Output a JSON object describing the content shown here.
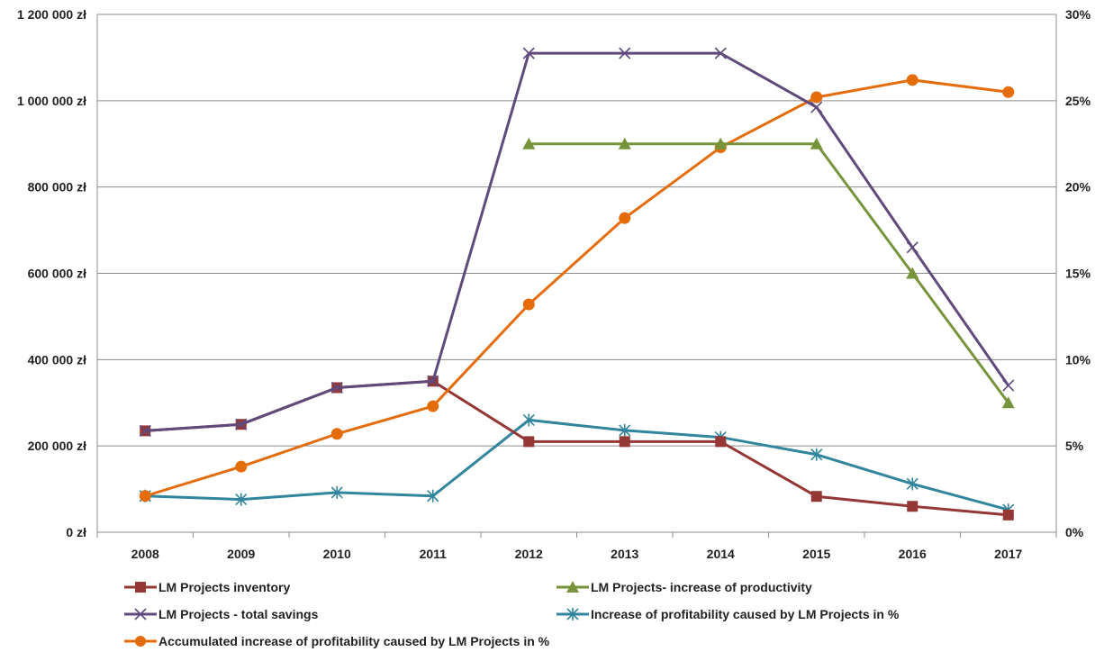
{
  "chart_data": {
    "type": "line",
    "categories": [
      "2008",
      "2009",
      "2010",
      "2011",
      "2012",
      "2013",
      "2014",
      "2015",
      "2016",
      "2017"
    ],
    "left_axis": {
      "ylim": [
        0,
        1200000
      ],
      "ticks": [
        0,
        200000,
        400000,
        600000,
        800000,
        1000000,
        1200000
      ],
      "tick_labels": [
        "0 zł",
        "200 000 zł",
        "400 000 zł",
        "600 000 zł",
        "800 000 zł",
        "1 000 000 zł",
        "1 200 000 zł"
      ]
    },
    "right_axis": {
      "ylim": [
        0,
        30
      ],
      "ticks": [
        0,
        5,
        10,
        15,
        20,
        25,
        30
      ],
      "tick_labels": [
        "0%",
        "5%",
        "10%",
        "15%",
        "20%",
        "25%",
        "30%"
      ]
    },
    "grid": true,
    "legend_position": "bottom",
    "series": [
      {
        "name": "LM Projects inventory",
        "axis": "left",
        "color": "#953735",
        "marker": "square",
        "values": [
          235000,
          250000,
          335000,
          350000,
          210000,
          210000,
          210000,
          83000,
          60000,
          40000
        ]
      },
      {
        "name": "LM Projects- increase of productivity",
        "axis": "left",
        "color": "#77933C",
        "marker": "triangle",
        "values": [
          null,
          null,
          null,
          null,
          900000,
          900000,
          900000,
          900000,
          600000,
          300000
        ]
      },
      {
        "name": "LM Projects - total savings",
        "axis": "left",
        "color": "#604A7B",
        "marker": "x",
        "values": [
          235000,
          250000,
          335000,
          350000,
          1110000,
          1110000,
          1110000,
          985000,
          660000,
          340000
        ]
      },
      {
        "name": "Increase of profitability caused by LM Projects in %",
        "axis": "right",
        "color": "#31859C",
        "marker": "star",
        "values": [
          2.1,
          1.9,
          2.3,
          2.1,
          6.5,
          5.9,
          5.5,
          4.5,
          2.8,
          1.3
        ]
      },
      {
        "name": "Accumulated increase of profitability caused by LM Projects in %",
        "axis": "right",
        "color": "#E46C0A",
        "marker": "circle",
        "values": [
          2.1,
          3.8,
          5.7,
          7.3,
          13.2,
          18.2,
          22.3,
          25.2,
          26.2,
          25.5
        ]
      }
    ]
  }
}
